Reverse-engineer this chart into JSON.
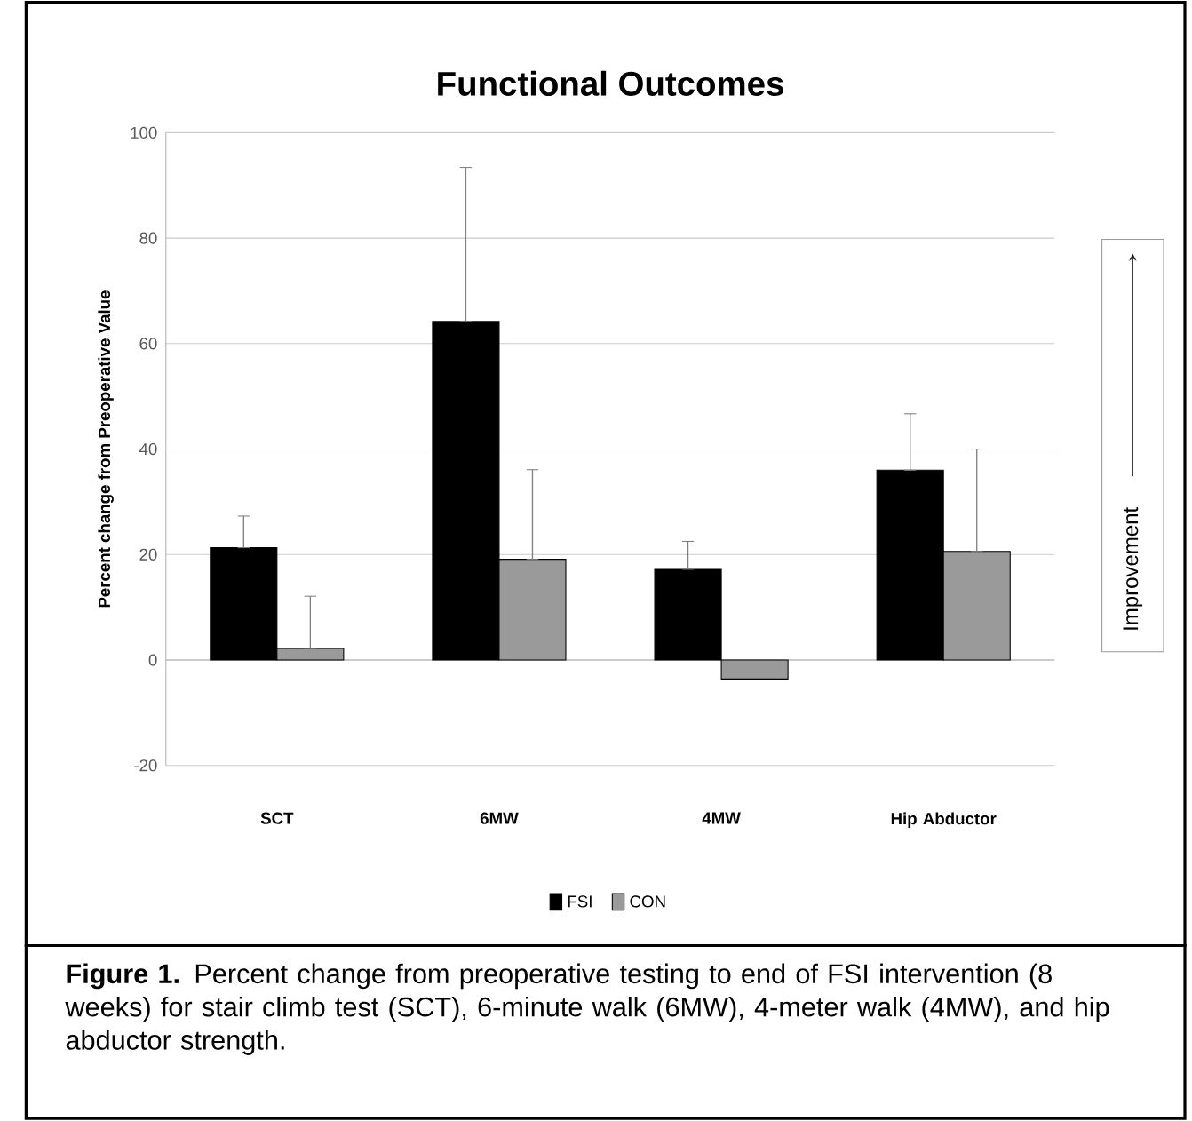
{
  "chart_data": {
    "type": "bar",
    "title": "Functional Outcomes",
    "ylabel": "Percent change from Preoperative Value",
    "categories": [
      "SCT",
      "6MW",
      "4MW",
      "Hip Abductor"
    ],
    "series": [
      {
        "name": "FSI",
        "color": "#000000",
        "values": [
          21.3,
          64.2,
          17.2,
          36.0
        ],
        "errors": [
          [
            21.3,
            27.3
          ],
          [
            64.2,
            93.4
          ],
          [
            17.2,
            22.5
          ],
          [
            36.0,
            46.7
          ]
        ]
      },
      {
        "name": "CON",
        "color": "#9a9a9a",
        "values": [
          2.2,
          19.1,
          -3.6,
          20.6
        ],
        "errors": [
          [
            2.2,
            12.1
          ],
          [
            19.1,
            36.1
          ],
          null,
          [
            20.6,
            40.0
          ]
        ]
      }
    ],
    "ylim": [
      -20,
      100
    ],
    "yticks": [
      -20,
      0,
      20,
      40,
      60,
      80,
      100
    ],
    "grid": "y",
    "legend": "bottom",
    "annotations": [
      "Improvement",
      "**Figure 1.** Percent change from preoperative testing to end of FSI intervention (8 weeks) for stair climb test (SCT), 6-minute walk (6MW), 4-meter walk (4MW), and hip abductor strength."
    ]
  }
}
